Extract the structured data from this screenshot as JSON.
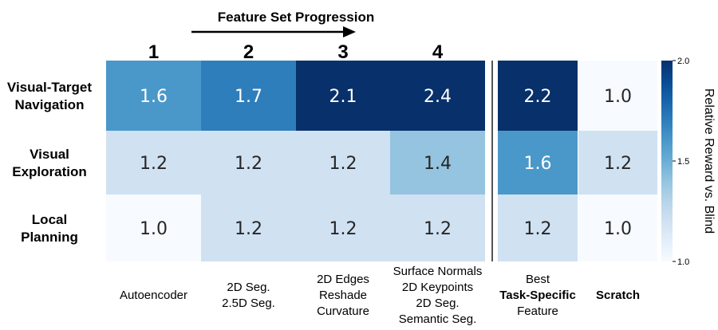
{
  "chart_data": {
    "type": "heatmap",
    "title": "Feature Set Progression",
    "column_numbers": [
      "1",
      "2",
      "3",
      "4"
    ],
    "rows": [
      "Visual-Target\nNavigation",
      "Visual\nExploration",
      "Local\nPlanning"
    ],
    "columns": [
      {
        "label": "Autoencoder",
        "bold": false
      },
      {
        "label": "2D Seg.\n2.5D Seg.",
        "bold": false
      },
      {
        "label": "2D Edges\nReshade\nCurvature",
        "bold": false
      },
      {
        "label": "Surface Normals\n2D Keypoints\n2D Seg.\nSemantic Seg.",
        "bold": false
      },
      {
        "label": "Best\nTask-Specific\nFeature",
        "bold_line": 1
      },
      {
        "label": "Scratch",
        "bold": true
      }
    ],
    "values": [
      [
        1.6,
        1.7,
        2.1,
        2.4,
        2.2,
        1.0
      ],
      [
        1.2,
        1.2,
        1.2,
        1.4,
        1.6,
        1.2
      ],
      [
        1.0,
        1.2,
        1.2,
        1.2,
        1.2,
        1.0
      ]
    ],
    "colorbar": {
      "label": "Relative Reward vs. Blind",
      "min": 1.0,
      "max": 2.0,
      "ticks": [
        1.0,
        1.5,
        2.0
      ],
      "tick_labels": [
        "1.0",
        "1.5",
        "2.0"
      ],
      "colormap": "Blues"
    }
  }
}
